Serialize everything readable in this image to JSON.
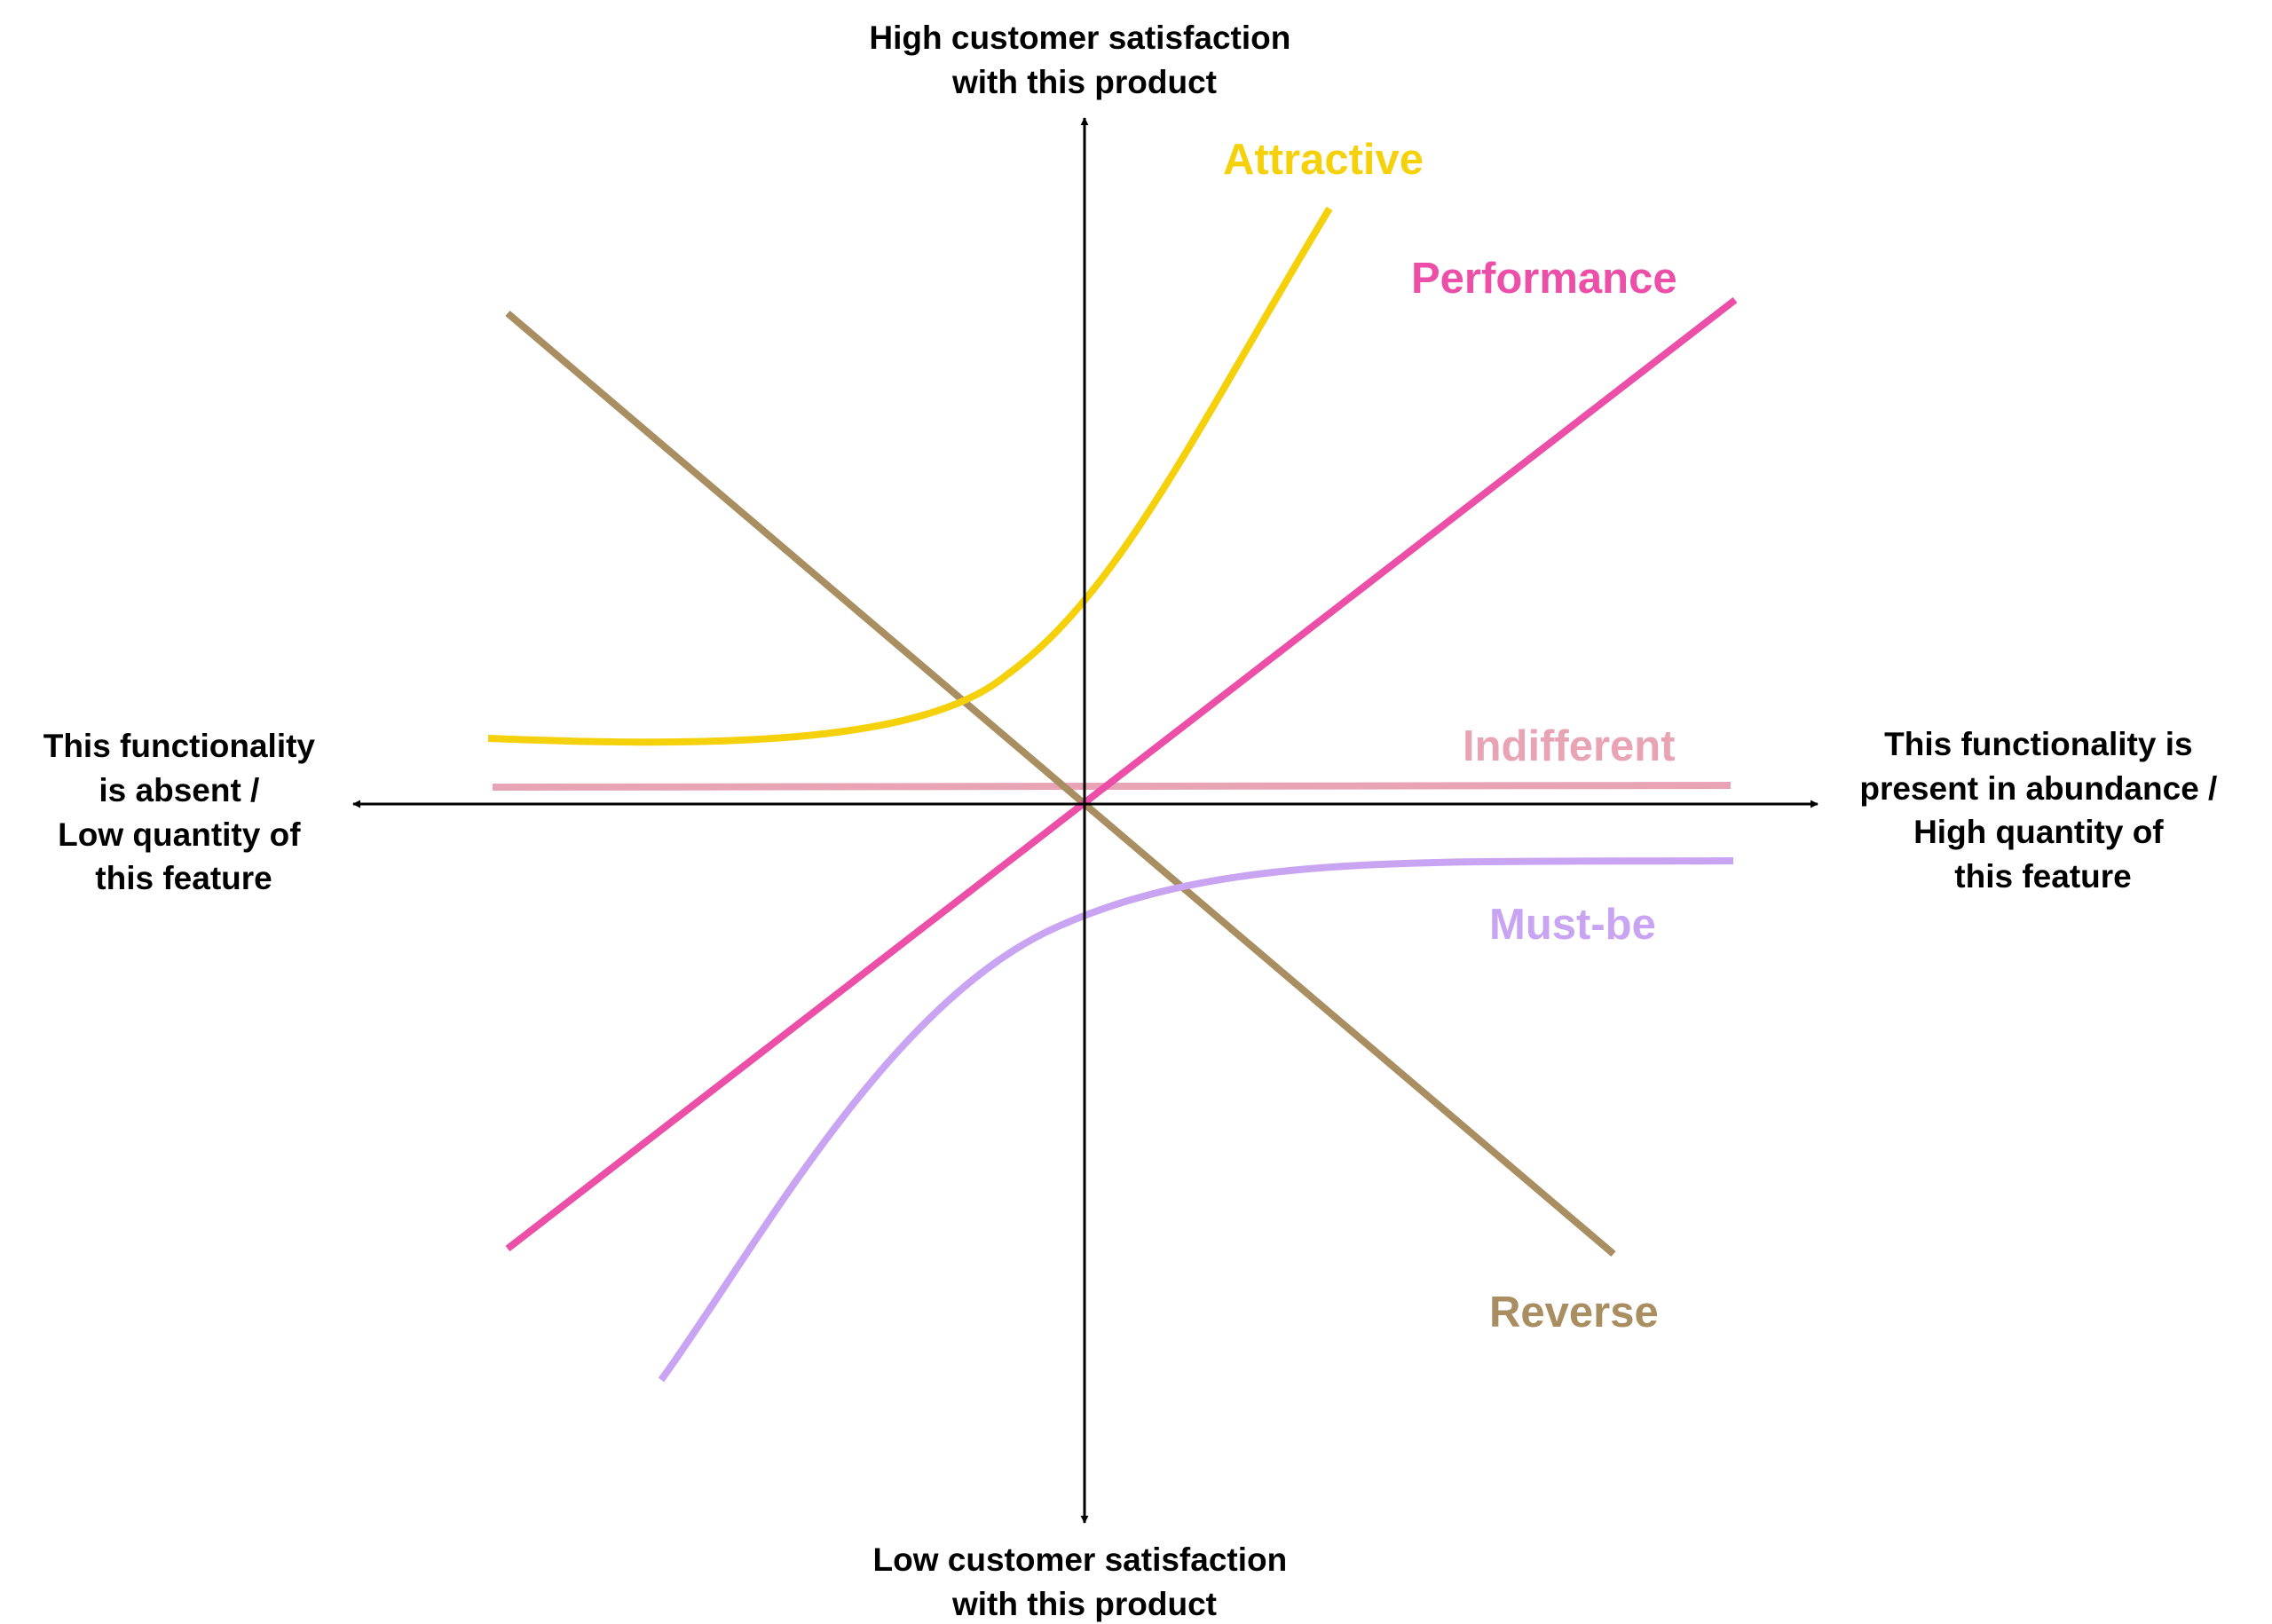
{
  "axes": {
    "top_label": [
      "High customer satisfaction",
      "with this product"
    ],
    "bottom_label": [
      "Low customer satisfaction",
      "with this product"
    ],
    "left_label": [
      "This functionality",
      "is absent /",
      "Low quantity of",
      "this feature"
    ],
    "right_label": [
      "This functionality is",
      "present in abundance /",
      "High quantity of",
      "this feature"
    ]
  },
  "curves": [
    {
      "key": "attractive",
      "label": "Attractive",
      "color": "#F5D10C"
    },
    {
      "key": "performance",
      "label": "Performance",
      "color": "#EC4FA7"
    },
    {
      "key": "indifferent",
      "label": "Indifferent",
      "color": "#E8A4B5"
    },
    {
      "key": "mustbe",
      "label": "Must-be",
      "color": "#C8A4F2"
    },
    {
      "key": "reverse",
      "label": "Reverse",
      "color": "#A88E60"
    }
  ],
  "colors": {
    "axis": "#000000",
    "background": "#FFFFFF"
  }
}
